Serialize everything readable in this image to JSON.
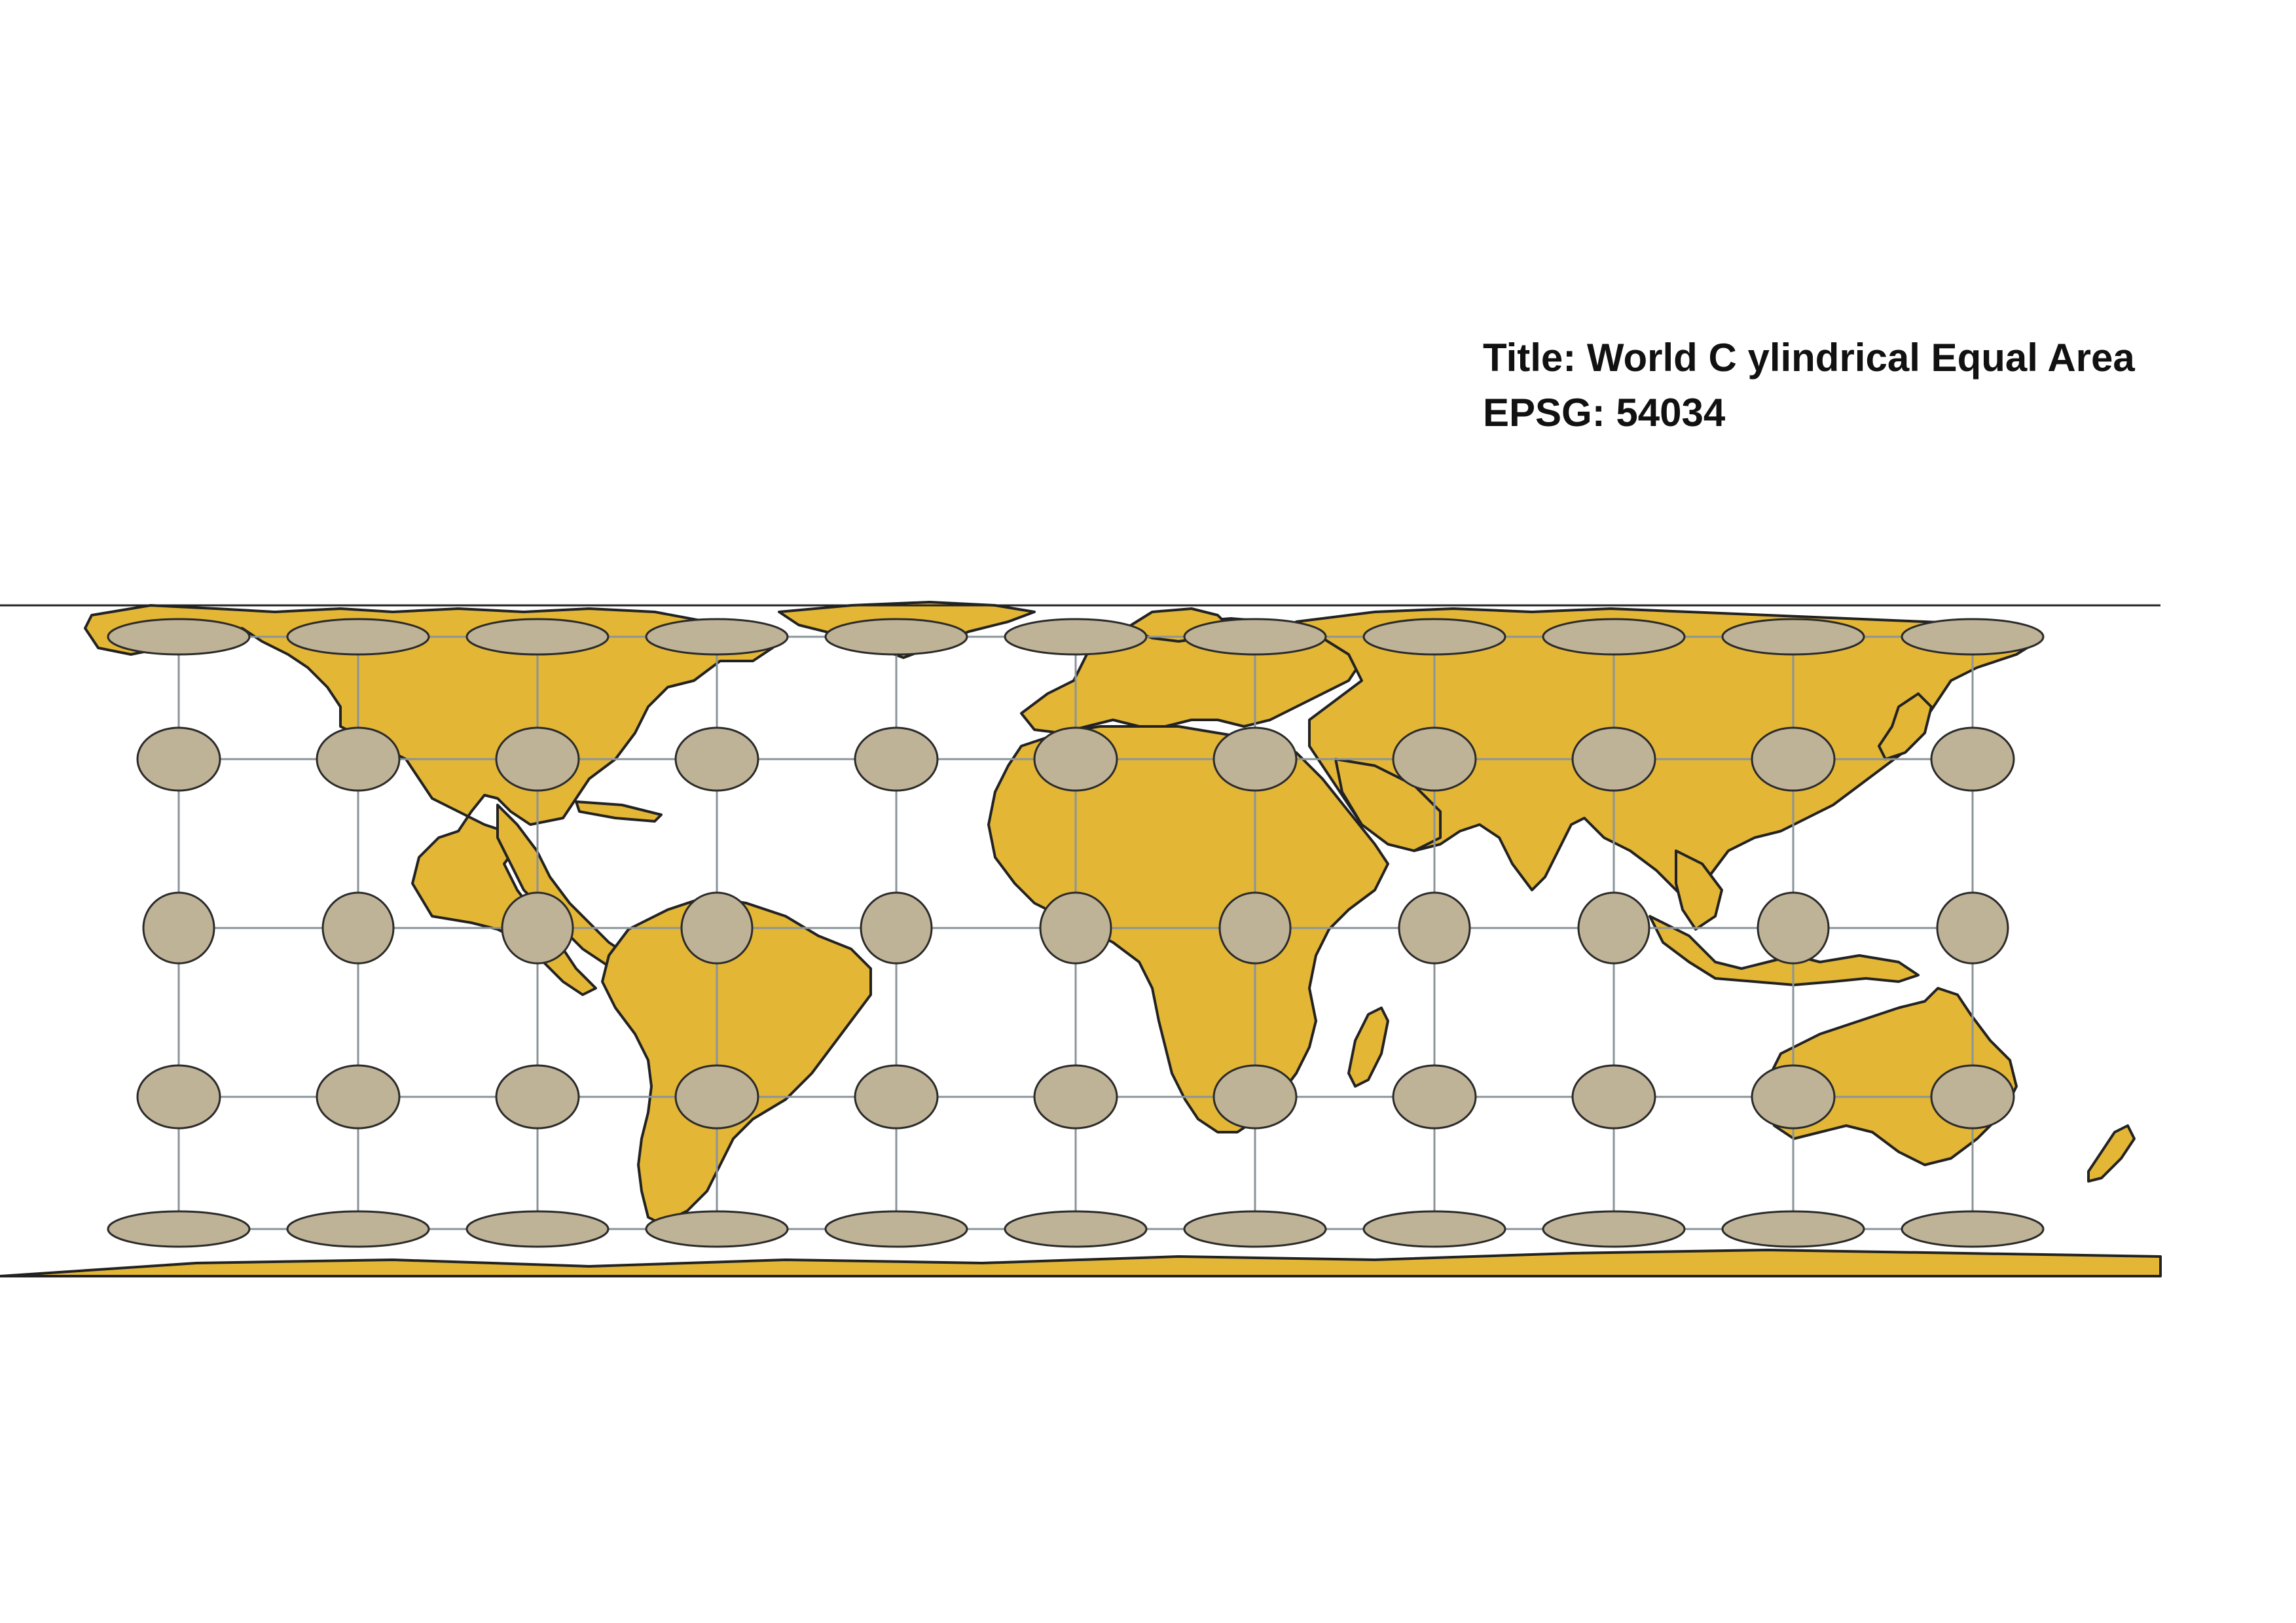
{
  "title_block": {
    "title_line": "Title: World C ylindrical Equal Area",
    "epsg_line": "EPSG: 54034"
  },
  "map": {
    "projection": "World Cylindrical Equal Area",
    "graticule_lon_step_deg": 30,
    "graticule_lat_step_deg": 30,
    "graticule_lons": [
      -150,
      -120,
      -90,
      -60,
      -30,
      0,
      30,
      60,
      90,
      120,
      150
    ],
    "graticule_lats": [
      60,
      30,
      0,
      -30,
      -60
    ],
    "indicatrix_note_lats": [
      60,
      30,
      0,
      -30,
      -60
    ],
    "colors": {
      "land": "#E3B636",
      "coastline": "#222222",
      "graticule": "#8A9499",
      "indicatrix": "#BFB397",
      "indicatrix_stroke": "#2A2A2A",
      "background": "#FFFFFF",
      "text": "#111111"
    }
  }
}
